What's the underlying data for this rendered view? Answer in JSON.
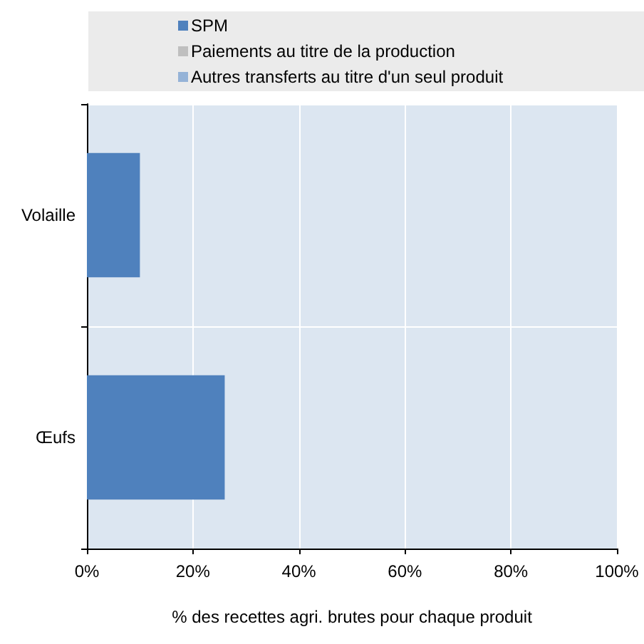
{
  "chart_data": {
    "type": "bar",
    "orientation": "horizontal",
    "stacked": true,
    "xlabel": "% des recettes agri. brutes pour chaque produit",
    "categories": [
      "Volaille",
      "Œufs"
    ],
    "series": [
      {
        "name": "SPM",
        "color": "#4f81bd",
        "values": [
          10,
          26
        ]
      },
      {
        "name": "Paiements au titre de la production",
        "color": "#bfbfbf",
        "values": [
          0,
          0
        ]
      },
      {
        "name": "Autres transferts au titre d'un seul produit",
        "color": "#95b3d7",
        "values": [
          0,
          0
        ]
      }
    ],
    "xlim": [
      0,
      100
    ],
    "xticks": [
      {
        "value": 0,
        "label": "0%"
      },
      {
        "value": 20,
        "label": "20%"
      },
      {
        "value": 40,
        "label": "40%"
      },
      {
        "value": 60,
        "label": "60%"
      },
      {
        "value": 80,
        "label": "80%"
      },
      {
        "value": 100,
        "label": "100%"
      }
    ],
    "grid": true,
    "legend": "top"
  }
}
